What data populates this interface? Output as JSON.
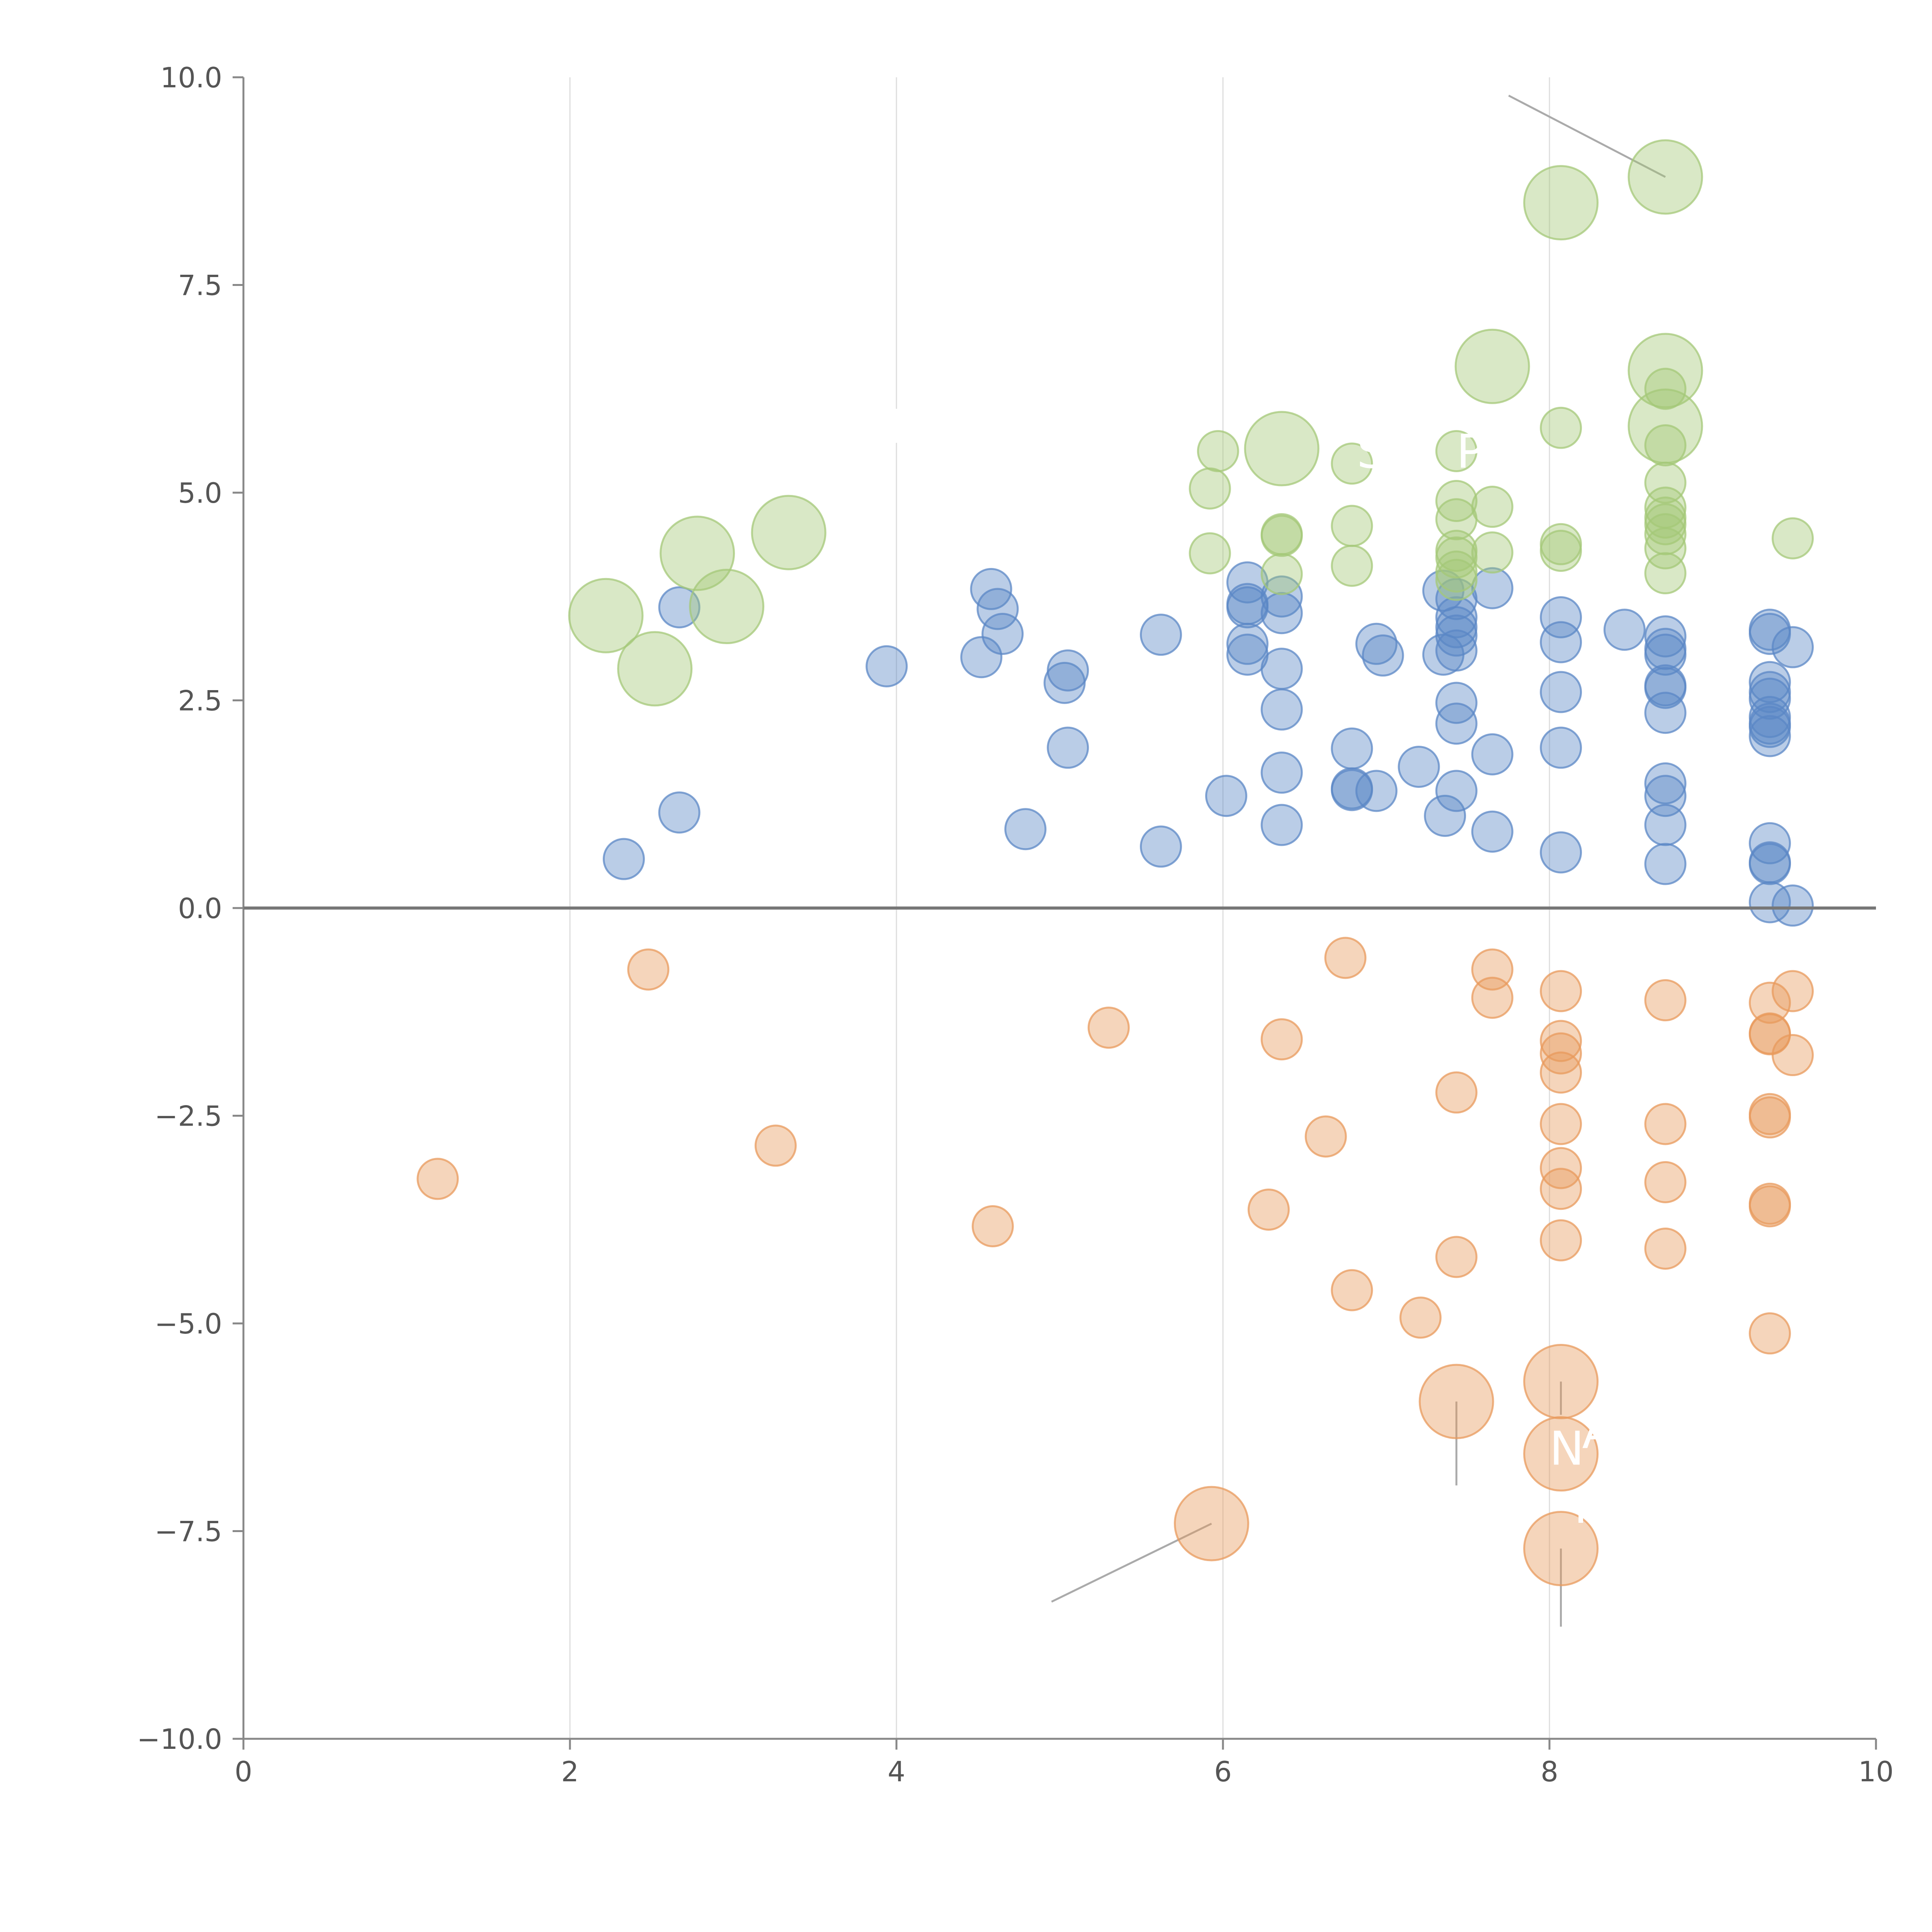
{
  "chart_data": {
    "type": "scatter",
    "title": "",
    "xlabel": "",
    "ylabel": "",
    "xlim": [
      0,
      10
    ],
    "ylim": [
      -10,
      10
    ],
    "grid": "vertical",
    "xticks": [
      "0",
      "2",
      "4",
      "6",
      "8",
      "10"
    ],
    "yticks": [
      "−10.0",
      "−7.5",
      "−5.0",
      "−2.5",
      "0.0",
      "2.5",
      "5.0",
      "7.5",
      "10.0"
    ],
    "xtick_values": [
      0,
      2,
      4,
      6,
      8,
      10
    ],
    "ytick_values": [
      -10,
      -7.5,
      -5,
      -2.5,
      0,
      2.5,
      5,
      7.5,
      10
    ],
    "colors": {
      "blue": "#5b87c5",
      "orange": "#e89a5c",
      "green": "#a4c878",
      "axis": "#888888",
      "zero": "#777777",
      "grid": "#dddddd",
      "leader": "#aaaaaa"
    },
    "series": [
      {
        "name": "blue",
        "color": "#5b87c5",
        "points": [
          [
            2.33,
            0.59,
            1
          ],
          [
            2.67,
            1.15,
            1
          ],
          [
            2.67,
            3.62,
            1
          ],
          [
            3.94,
            2.91,
            1
          ],
          [
            4.52,
            3.02,
            1
          ],
          [
            4.58,
            3.84,
            1
          ],
          [
            4.62,
            3.6,
            1
          ],
          [
            4.65,
            3.3,
            1
          ],
          [
            4.79,
            0.95,
            1
          ],
          [
            5.03,
            2.71,
            1
          ],
          [
            5.05,
            2.86,
            1
          ],
          [
            5.05,
            1.93,
            1
          ],
          [
            5.62,
            3.29,
            1
          ],
          [
            5.62,
            0.74,
            1
          ],
          [
            6.02,
            1.35,
            1
          ],
          [
            6.15,
            3.92,
            1
          ],
          [
            6.15,
            3.66,
            1
          ],
          [
            6.15,
            3.62,
            1
          ],
          [
            6.15,
            3.18,
            1
          ],
          [
            6.15,
            3.05,
            1
          ],
          [
            6.36,
            3.75,
            1
          ],
          [
            6.36,
            3.55,
            1
          ],
          [
            6.36,
            2.88,
            1
          ],
          [
            6.36,
            2.39,
            1
          ],
          [
            6.36,
            1.63,
            1
          ],
          [
            6.36,
            1.0,
            1
          ],
          [
            6.79,
            1.92,
            1
          ],
          [
            6.79,
            1.44,
            1
          ],
          [
            6.79,
            1.42,
            1
          ],
          [
            6.94,
            1.41,
            1
          ],
          [
            6.94,
            3.18,
            1
          ],
          [
            6.98,
            3.04,
            1
          ],
          [
            7.2,
            1.7,
            1
          ],
          [
            7.35,
            3.82,
            1
          ],
          [
            7.35,
            3.05,
            1
          ],
          [
            7.36,
            1.11,
            1
          ],
          [
            7.43,
            3.72,
            1
          ],
          [
            7.43,
            3.5,
            1
          ],
          [
            7.43,
            3.38,
            1
          ],
          [
            7.43,
            3.28,
            1
          ],
          [
            7.43,
            3.1,
            1
          ],
          [
            7.43,
            2.47,
            1
          ],
          [
            7.43,
            2.22,
            1
          ],
          [
            7.43,
            1.41,
            1
          ],
          [
            7.65,
            3.85,
            1
          ],
          [
            7.65,
            1.85,
            1
          ],
          [
            7.65,
            0.92,
            1
          ],
          [
            8.07,
            3.5,
            1
          ],
          [
            8.07,
            3.2,
            1
          ],
          [
            8.07,
            2.6,
            1
          ],
          [
            8.07,
            1.93,
            1
          ],
          [
            8.07,
            0.67,
            1
          ],
          [
            8.46,
            3.35,
            1
          ],
          [
            8.71,
            3.27,
            1
          ],
          [
            8.71,
            3.12,
            1
          ],
          [
            8.71,
            3.05,
            1
          ],
          [
            8.71,
            2.68,
            1
          ],
          [
            8.71,
            2.65,
            1
          ],
          [
            8.71,
            2.35,
            1
          ],
          [
            8.71,
            1.5,
            1
          ],
          [
            8.71,
            1.35,
            1
          ],
          [
            8.71,
            1.0,
            1
          ],
          [
            8.71,
            0.53,
            1
          ],
          [
            9.35,
            3.35,
            1
          ],
          [
            9.35,
            3.3,
            1
          ],
          [
            9.35,
            2.72,
            1
          ],
          [
            9.35,
            2.6,
            1
          ],
          [
            9.35,
            2.52,
            1
          ],
          [
            9.35,
            2.3,
            1
          ],
          [
            9.35,
            2.22,
            1
          ],
          [
            9.35,
            2.18,
            1
          ],
          [
            9.35,
            2.07,
            1
          ],
          [
            9.35,
            0.78,
            1
          ],
          [
            9.35,
            0.55,
            1
          ],
          [
            9.35,
            0.53,
            1
          ],
          [
            9.35,
            0.07,
            1
          ],
          [
            9.49,
            3.14,
            1
          ],
          [
            9.49,
            0.03,
            1
          ]
        ]
      },
      {
        "name": "orange",
        "color": "#e89a5c",
        "points": [
          [
            1.19,
            -3.26,
            1
          ],
          [
            2.48,
            -0.74,
            1
          ],
          [
            3.26,
            -2.86,
            1
          ],
          [
            4.59,
            -3.83,
            1
          ],
          [
            5.3,
            -1.44,
            1
          ],
          [
            6.28,
            -3.63,
            1
          ],
          [
            6.36,
            -1.58,
            1
          ],
          [
            6.63,
            -2.75,
            1
          ],
          [
            6.75,
            -0.6,
            1
          ],
          [
            6.79,
            -4.6,
            1
          ],
          [
            7.21,
            -4.93,
            1
          ],
          [
            7.43,
            -2.22,
            1
          ],
          [
            7.43,
            -4.2,
            1
          ],
          [
            7.65,
            -0.74,
            1
          ],
          [
            7.65,
            -1.08,
            1
          ],
          [
            8.07,
            -1.0,
            1
          ],
          [
            8.07,
            -1.6,
            1
          ],
          [
            8.07,
            -1.75,
            1
          ],
          [
            8.07,
            -1.98,
            1
          ],
          [
            8.07,
            -2.6,
            1
          ],
          [
            8.07,
            -3.13,
            1
          ],
          [
            8.07,
            -3.38,
            1
          ],
          [
            8.07,
            -4.0,
            1
          ],
          [
            8.71,
            -1.11,
            1
          ],
          [
            8.71,
            -2.6,
            1
          ],
          [
            8.71,
            -3.3,
            1
          ],
          [
            8.71,
            -4.1,
            1
          ],
          [
            9.35,
            -1.14,
            1
          ],
          [
            9.35,
            -1.51,
            1
          ],
          [
            9.35,
            -1.52,
            1
          ],
          [
            9.35,
            -2.48,
            1
          ],
          [
            9.35,
            -2.52,
            1
          ],
          [
            9.35,
            -3.56,
            1
          ],
          [
            9.35,
            -3.59,
            1
          ],
          [
            9.35,
            -5.12,
            1
          ],
          [
            9.49,
            -1.0,
            1
          ],
          [
            9.49,
            -1.77,
            1
          ],
          [
            5.93,
            -7.41,
            2
          ],
          [
            7.43,
            -5.94,
            2
          ],
          [
            8.07,
            -5.7,
            2
          ],
          [
            8.07,
            -6.57,
            2
          ],
          [
            8.07,
            -7.71,
            2
          ]
        ]
      },
      {
        "name": "green",
        "color": "#a4c878",
        "points": [
          [
            5.92,
            4.27,
            1
          ],
          [
            5.92,
            5.05,
            1
          ],
          [
            5.97,
            5.5,
            1
          ],
          [
            6.36,
            4.5,
            1
          ],
          [
            6.36,
            4.48,
            1
          ],
          [
            6.36,
            4.02,
            1
          ],
          [
            6.79,
            4.6,
            1
          ],
          [
            6.79,
            4.12,
            1
          ],
          [
            6.79,
            5.35,
            1
          ],
          [
            7.43,
            5.5,
            1
          ],
          [
            7.43,
            4.9,
            1
          ],
          [
            7.43,
            4.68,
            1
          ],
          [
            7.43,
            4.3,
            1
          ],
          [
            7.43,
            4.22,
            1
          ],
          [
            7.43,
            4.05,
            1
          ],
          [
            7.43,
            3.95,
            1
          ],
          [
            7.65,
            4.83,
            1
          ],
          [
            7.65,
            4.28,
            1
          ],
          [
            8.07,
            5.78,
            1
          ],
          [
            8.07,
            4.38,
            1
          ],
          [
            8.07,
            4.3,
            1
          ],
          [
            8.71,
            6.25,
            1
          ],
          [
            8.71,
            5.57,
            1
          ],
          [
            8.71,
            5.12,
            1
          ],
          [
            8.71,
            4.82,
            1
          ],
          [
            8.71,
            4.7,
            1
          ],
          [
            8.71,
            4.62,
            1
          ],
          [
            8.71,
            4.5,
            1
          ],
          [
            8.71,
            4.33,
            1
          ],
          [
            8.71,
            4.03,
            1
          ],
          [
            9.49,
            4.45,
            1
          ],
          [
            2.22,
            3.52,
            2
          ],
          [
            2.52,
            2.88,
            2
          ],
          [
            2.78,
            4.27,
            2
          ],
          [
            2.96,
            3.63,
            2
          ],
          [
            3.34,
            4.52,
            2
          ],
          [
            6.36,
            5.53,
            2
          ],
          [
            7.65,
            6.52,
            2
          ],
          [
            8.07,
            8.49,
            2
          ],
          [
            8.71,
            8.8,
            2
          ],
          [
            8.71,
            6.47,
            2
          ],
          [
            8.71,
            5.8,
            2
          ]
        ]
      }
    ],
    "annotations": [
      {
        "text": "SU",
        "x": 6.82,
        "y": 5.3
      },
      {
        "text": "P",
        "x": 7.43,
        "y": 5.3
      },
      {
        "text": "A",
        "x": 8.2,
        "y": -6.5
      },
      {
        "text": "N",
        "x": 8.0,
        "y": -6.7
      },
      {
        "text": "F",
        "x": 8.15,
        "y": -7.4
      },
      {
        "text": "E",
        "x": 3.95,
        "y": 5.6
      }
    ]
  }
}
